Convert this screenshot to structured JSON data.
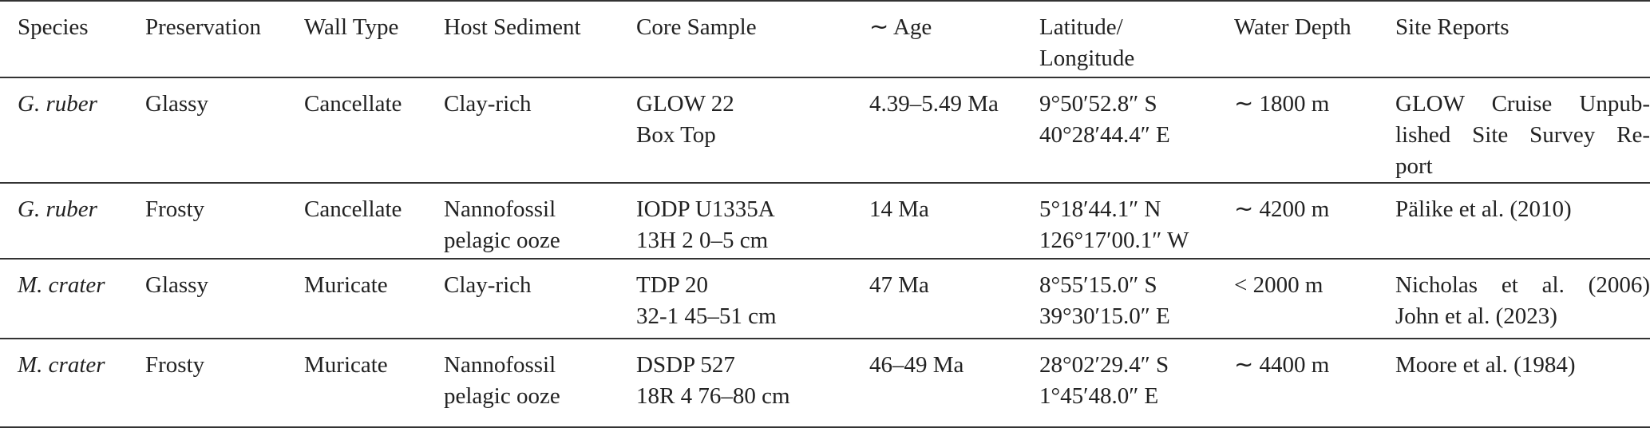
{
  "table": {
    "headers": [
      "Species",
      "Preservation",
      "Wall Type",
      "Host Sediment",
      "Core Sample",
      "∼ Age",
      [
        "Latitude/",
        "Longitude"
      ],
      "Water Depth",
      "Site Reports"
    ],
    "rows": [
      [
        "G. ruber",
        "Glassy",
        "Cancellate",
        "Clay-rich",
        [
          "GLOW 22",
          "Box Top"
        ],
        "4.39–5.49 Ma",
        [
          "9°50′52.8″ S",
          "40°28′44.4″ E"
        ],
        "∼ 1800 m",
        [
          "GLOW Cruise Unpub-",
          "lished Site Survey Re-",
          "port"
        ]
      ],
      [
        "G. ruber",
        "Frosty",
        "Cancellate",
        [
          "Nannofossil",
          "pelagic ooze"
        ],
        [
          "IODP U1335A",
          "13H 2 0–5 cm"
        ],
        "14 Ma",
        [
          "5°18′44.1″ N",
          "126°17′00.1″ W"
        ],
        "∼ 4200 m",
        "Pälike et al. (2010)"
      ],
      [
        "M. crater",
        "Glassy",
        "Muricate",
        "Clay-rich",
        [
          "TDP 20",
          "32-1 45–51 cm"
        ],
        "47 Ma",
        [
          "8°55′15.0″ S",
          "39°30′15.0″ E"
        ],
        "< 2000 m",
        [
          "Nicholas et al. (2006)",
          "John et al. (2023)"
        ]
      ],
      [
        "M. crater",
        "Frosty",
        "Muricate",
        [
          "Nannofossil",
          "pelagic ooze"
        ],
        [
          "DSDP 527",
          "18R 4 76–80 cm"
        ],
        "46–49 Ma",
        [
          "28°02′29.4″ S",
          "1°45′48.0″ E"
        ],
        "∼ 4400 m",
        "Moore et al. (1984)"
      ]
    ]
  }
}
